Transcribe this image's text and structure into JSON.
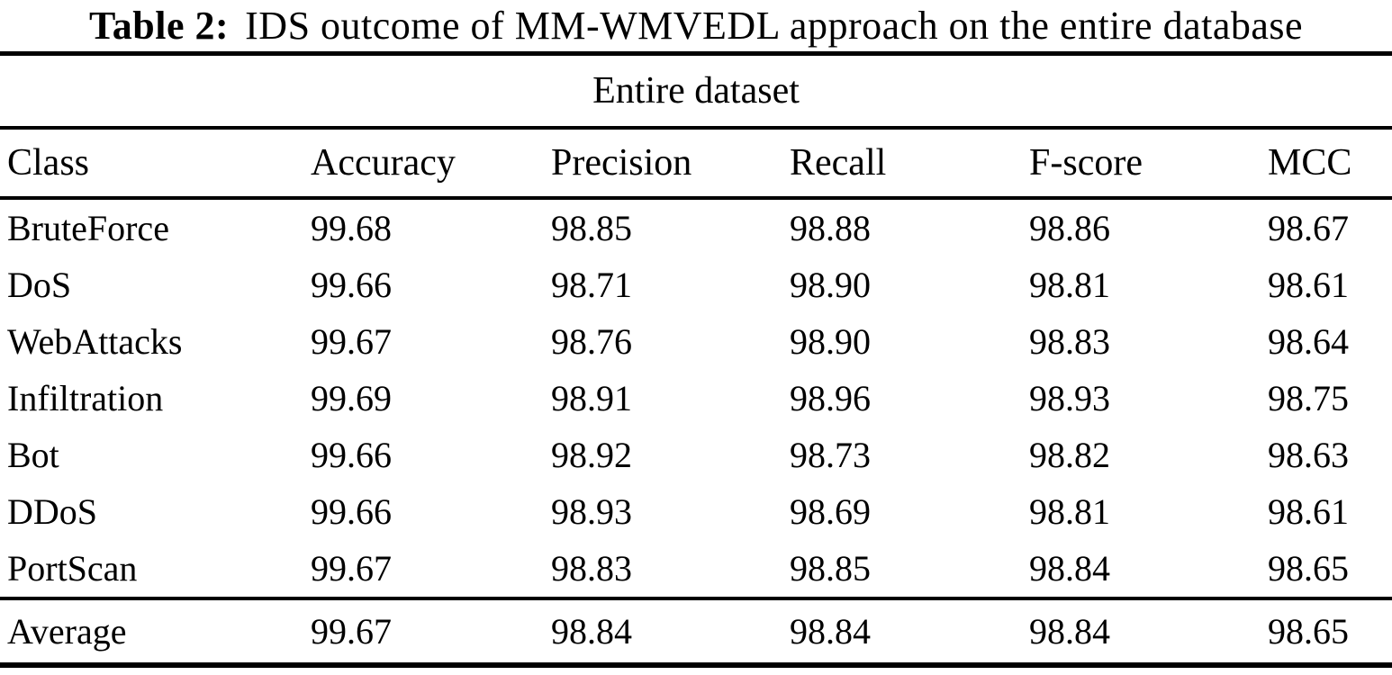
{
  "title": {
    "label": "Table 2:",
    "text": "IDS outcome of MM-WMVEDL approach on the entire database"
  },
  "table": {
    "span_header": "Entire dataset",
    "columns": [
      "Class",
      "Accuracy",
      "Precision",
      "Recall",
      "F-score",
      "MCC"
    ],
    "rows": [
      {
        "class": "BruteForce",
        "values": [
          "99.68",
          "98.85",
          "98.88",
          "98.86",
          "98.67"
        ]
      },
      {
        "class": "DoS",
        "values": [
          "99.66",
          "98.71",
          "98.90",
          "98.81",
          "98.61"
        ]
      },
      {
        "class": "WebAttacks",
        "values": [
          "99.67",
          "98.76",
          "98.90",
          "98.83",
          "98.64"
        ]
      },
      {
        "class": "Infiltration",
        "values": [
          "99.69",
          "98.91",
          "98.96",
          "98.93",
          "98.75"
        ]
      },
      {
        "class": "Bot",
        "values": [
          "99.66",
          "98.92",
          "98.73",
          "98.82",
          "98.63"
        ]
      },
      {
        "class": "DDoS",
        "values": [
          "99.66",
          "98.93",
          "98.69",
          "98.81",
          "98.61"
        ]
      },
      {
        "class": "PortScan",
        "values": [
          "99.67",
          "98.83",
          "98.85",
          "98.84",
          "98.65"
        ]
      }
    ],
    "average": {
      "class": "Average",
      "values": [
        "99.67",
        "98.84",
        "98.84",
        "98.84",
        "98.65"
      ]
    }
  },
  "colors": {
    "text": "#000000",
    "background": "#ffffff",
    "rule": "#000000"
  }
}
